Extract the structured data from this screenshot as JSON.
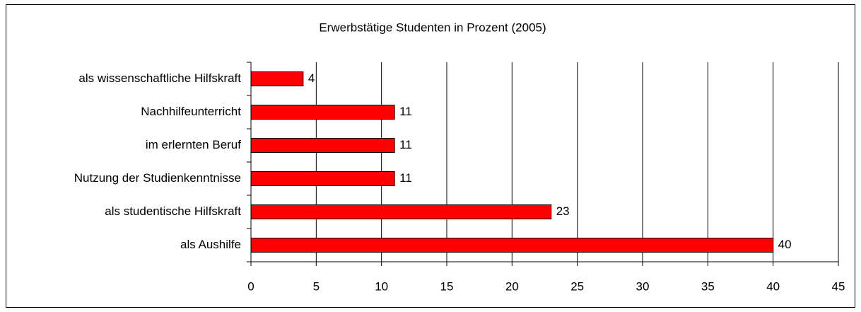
{
  "chart_data": {
    "type": "bar",
    "orientation": "horizontal",
    "title": "Erwerbstätige Studenten in Prozent (2005)",
    "categories": [
      "als wissenschaftliche Hilfskraft",
      "Nachhilfeunterricht",
      "im erlernten Beruf",
      "Nutzung der Studienkenntnisse",
      "als studentische Hilfskraft",
      "als Aushilfe"
    ],
    "values": [
      4,
      11,
      11,
      11,
      23,
      40
    ],
    "color": "#ff0000",
    "xlim": [
      0,
      45
    ],
    "xticks": [
      0,
      5,
      10,
      15,
      20,
      25,
      30,
      35,
      40,
      45
    ],
    "grid": true
  }
}
